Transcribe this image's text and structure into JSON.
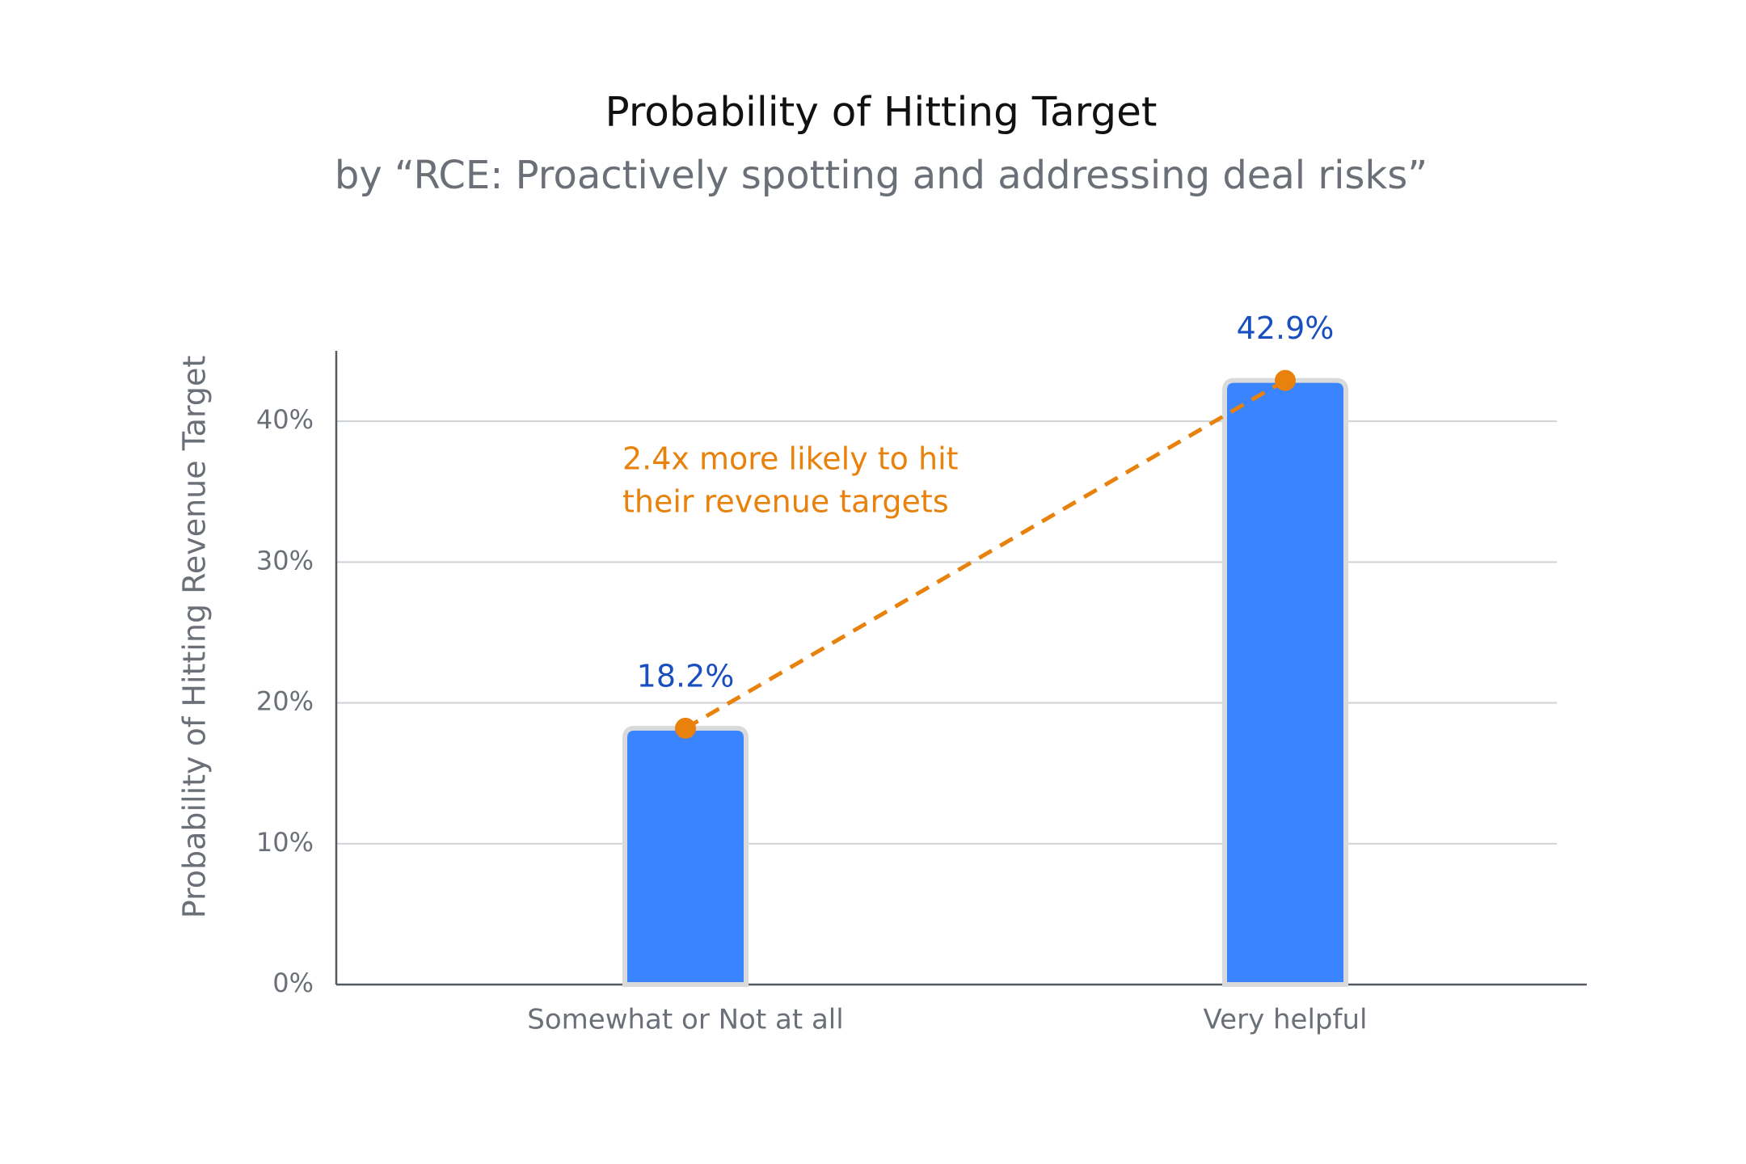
{
  "chart_data": {
    "type": "bar",
    "title": "Probability of Hitting Target",
    "subtitle": "by “RCE: Proactively spotting and addressing deal risks”",
    "y_label": "Probability of Hitting Revenue Target",
    "categories": [
      "Somewhat or Not at all",
      "Very helpful"
    ],
    "values": [
      18.2,
      42.9
    ],
    "value_labels": [
      "18.2%",
      "42.9%"
    ],
    "color": "#3a84ff",
    "value_label_color": "#1a4fbf",
    "trend_color": "#e8820c",
    "annotation": [
      "2.4x more likely to hit",
      "their revenue targets"
    ],
    "ylim": [
      0,
      45
    ],
    "yticks": [
      {
        "value": 0,
        "label": "0%"
      },
      {
        "value": 10,
        "label": "10%"
      },
      {
        "value": 20,
        "label": "20%"
      },
      {
        "value": 30,
        "label": "30%"
      },
      {
        "value": 40,
        "label": "40%"
      }
    ],
    "grid": true
  }
}
